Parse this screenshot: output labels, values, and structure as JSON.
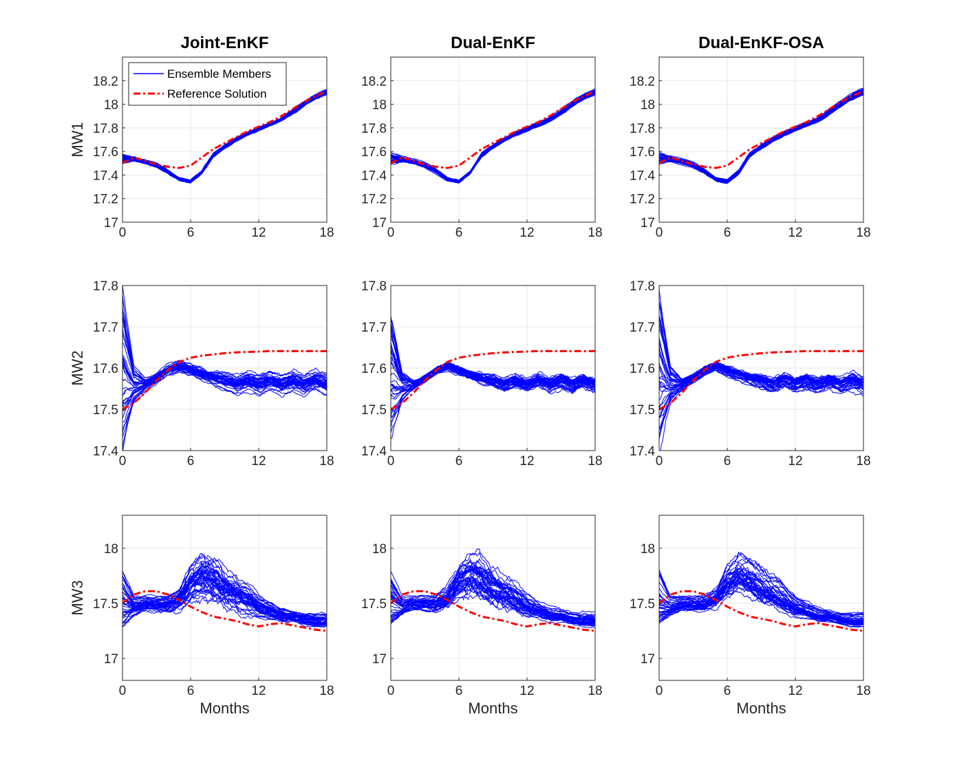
{
  "chart_data": {
    "type": "line",
    "column_titles": [
      "Joint-EnKF",
      "Dual-EnKF",
      "Dual-EnKF-OSA"
    ],
    "row_labels": [
      "MW1",
      "MW2",
      "MW3"
    ],
    "xlabel": "Months",
    "xlim": [
      0,
      18
    ],
    "xticks": [
      0,
      6,
      12,
      18
    ],
    "legend": {
      "placement": "top-left",
      "entries": [
        "Ensemble Members",
        "Reference Solution"
      ]
    },
    "colors": {
      "ensemble": "#0000ff",
      "reference": "#ff0000",
      "grid": "#e6e6e6",
      "axis": "#262626"
    },
    "rows": [
      {
        "label": "MW1",
        "ylim": [
          17.0,
          18.4
        ],
        "yticks": [
          17,
          17.2,
          17.4,
          17.6,
          17.8,
          18,
          18.2
        ],
        "ytick_labels": [
          "17",
          "17.2",
          "17.4",
          "17.6",
          "17.8",
          "18",
          "18.2"
        ],
        "reference": {
          "x": [
            0,
            1,
            2,
            3,
            4,
            5,
            6,
            7,
            8,
            9,
            10,
            11,
            12,
            13,
            14,
            15,
            16,
            17,
            18
          ],
          "y": [
            17.5,
            17.55,
            17.52,
            17.49,
            17.47,
            17.46,
            17.48,
            17.55,
            17.62,
            17.67,
            17.72,
            17.77,
            17.81,
            17.85,
            17.9,
            17.96,
            18.02,
            18.07,
            18.11
          ]
        },
        "ensemble": [
          {
            "x": [
              0,
              1,
              2,
              3,
              4,
              5,
              6,
              7,
              8,
              9,
              10,
              11,
              12,
              13,
              14,
              15,
              16,
              17,
              18
            ],
            "y": [
              17.58,
              17.55,
              17.53,
              17.5,
              17.44,
              17.37,
              17.35,
              17.43,
              17.58,
              17.65,
              17.71,
              17.76,
              17.8,
              17.84,
              17.88,
              17.95,
              18.02,
              18.08,
              18.12
            ]
          },
          {
            "x": [
              0,
              1,
              2,
              3,
              4,
              5,
              6,
              7,
              8,
              9,
              10,
              11,
              12,
              13,
              14,
              15,
              16,
              17,
              18
            ],
            "y": [
              17.5,
              17.52,
              17.5,
              17.47,
              17.42,
              17.36,
              17.34,
              17.42,
              17.56,
              17.63,
              17.69,
              17.74,
              17.78,
              17.82,
              17.86,
              17.92,
              17.99,
              18.05,
              18.09
            ]
          }
        ]
      },
      {
        "label": "MW2",
        "ylim": [
          17.4,
          17.8
        ],
        "yticks": [
          17.4,
          17.5,
          17.6,
          17.7,
          17.8
        ],
        "ytick_labels": [
          "17.4",
          "17.5",
          "17.6",
          "17.7",
          "17.8"
        ],
        "reference": {
          "x": [
            0,
            1,
            2,
            3,
            4,
            5,
            6,
            7,
            8,
            9,
            10,
            11,
            12,
            13,
            14,
            15,
            16,
            17,
            18
          ],
          "y": [
            17.5,
            17.515,
            17.54,
            17.57,
            17.595,
            17.615,
            17.625,
            17.63,
            17.633,
            17.636,
            17.638,
            17.639,
            17.64,
            17.641,
            17.641,
            17.641,
            17.641,
            17.641,
            17.641
          ]
        },
        "ensemble": [
          {
            "x": [
              0,
              1,
              2,
              3,
              4,
              5,
              6,
              7,
              8,
              9,
              10,
              11,
              12,
              13,
              14,
              15,
              16,
              17,
              18
            ],
            "y": [
              17.78,
              17.6,
              17.57,
              17.58,
              17.6,
              17.61,
              17.6,
              17.59,
              17.58,
              17.58,
              17.57,
              17.58,
              17.57,
              17.58,
              17.57,
              17.58,
              17.57,
              17.58,
              17.57
            ]
          },
          {
            "x": [
              0,
              1,
              2,
              3,
              4,
              5,
              6,
              7,
              8,
              9,
              10,
              11,
              12,
              13,
              14,
              15,
              16,
              17,
              18
            ],
            "y": [
              17.42,
              17.52,
              17.55,
              17.57,
              17.59,
              17.6,
              17.59,
              17.58,
              17.57,
              17.56,
              17.55,
              17.56,
              17.55,
              17.56,
              17.55,
              17.56,
              17.55,
              17.56,
              17.55
            ]
          }
        ]
      },
      {
        "label": "MW3",
        "ylim": [
          16.8,
          18.3
        ],
        "yticks": [
          17,
          17.5,
          18
        ],
        "ytick_labels": [
          "17",
          "17.5",
          "18"
        ],
        "reference": {
          "x": [
            0,
            1,
            2,
            3,
            4,
            5,
            6,
            7,
            8,
            9,
            10,
            11,
            12,
            13,
            14,
            15,
            16,
            17,
            18
          ],
          "y": [
            17.5,
            17.58,
            17.61,
            17.61,
            17.58,
            17.53,
            17.47,
            17.42,
            17.38,
            17.36,
            17.34,
            17.31,
            17.29,
            17.31,
            17.32,
            17.3,
            17.28,
            17.26,
            17.25
          ]
        },
        "ensemble": [
          {
            "x": [
              0,
              1,
              2,
              3,
              4,
              5,
              6,
              7,
              8,
              9,
              10,
              11,
              12,
              13,
              14,
              15,
              16,
              17,
              18
            ],
            "y": [
              17.8,
              17.55,
              17.55,
              17.55,
              17.55,
              17.6,
              17.8,
              17.9,
              17.85,
              17.75,
              17.7,
              17.65,
              17.55,
              17.5,
              17.45,
              17.42,
              17.4,
              17.4,
              17.4
            ]
          },
          {
            "x": [
              0,
              1,
              2,
              3,
              4,
              5,
              6,
              7,
              8,
              9,
              10,
              11,
              12,
              13,
              14,
              15,
              16,
              17,
              18
            ],
            "y": [
              17.3,
              17.4,
              17.45,
              17.45,
              17.45,
              17.5,
              17.6,
              17.65,
              17.6,
              17.55,
              17.5,
              17.45,
              17.4,
              17.38,
              17.35,
              17.35,
              17.32,
              17.3,
              17.3
            ]
          }
        ]
      }
    ]
  }
}
